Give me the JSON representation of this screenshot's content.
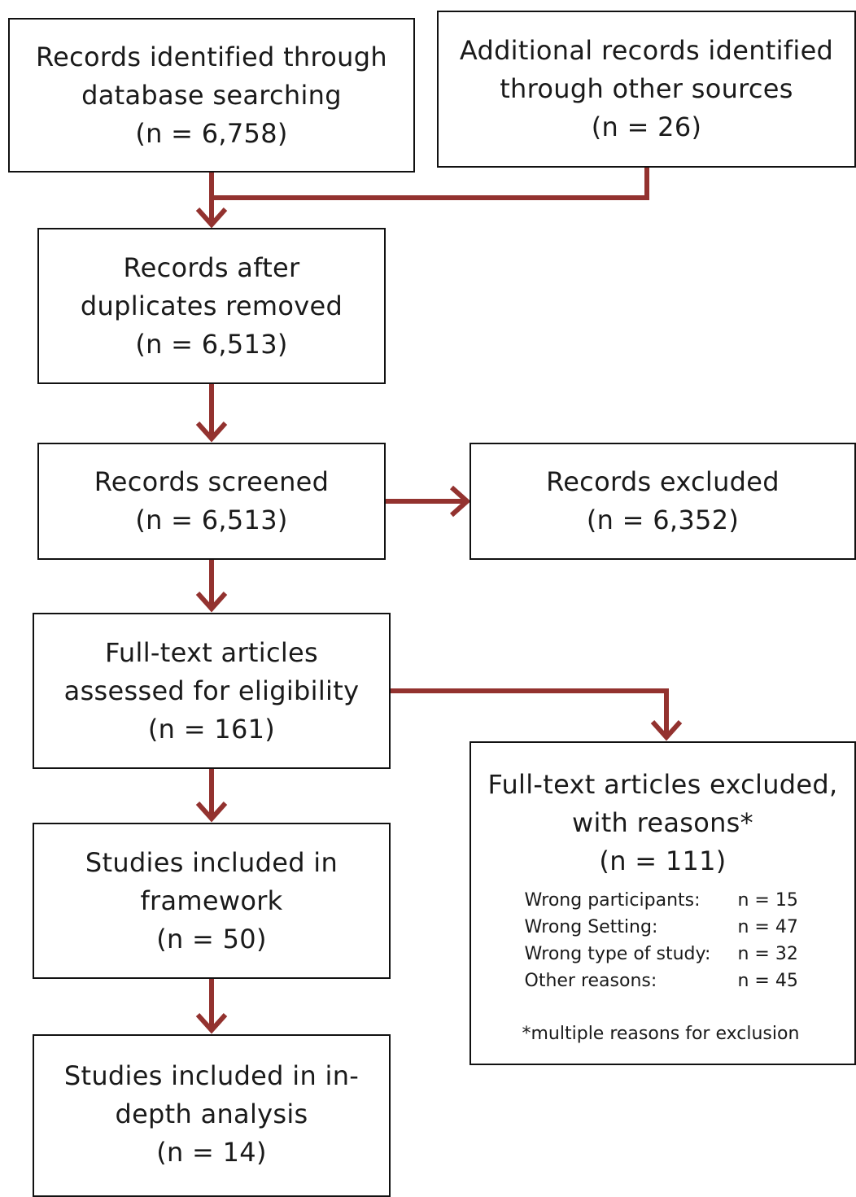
{
  "colors": {
    "arrow": "#93322f",
    "border": "#111111"
  },
  "boxes": {
    "database": "Records identified through\ndatabase searching\n(n = 6,758)",
    "other_sources": "Additional records identified\nthrough other sources\n(n = 26)",
    "after_duplicates": "Records after\nduplicates removed\n(n = 6,513)",
    "screened": "Records screened\n(n = 6,513)",
    "excluded": "Records excluded\n(n = 6,352)",
    "full_text": "Full-text articles\nassessed for eligibility\n(n = 161)",
    "full_text_excluded": "Full-text articles excluded,\nwith reasons*\n(n = 111)",
    "framework": "Studies included in\nframework\n(n = 50)",
    "in_depth": "Studies included in in-\ndepth analysis\n(n = 14)"
  },
  "reasons": [
    {
      "label": "Wrong participants:",
      "count": "n = 15"
    },
    {
      "label": "Wrong Setting:",
      "count": "n = 47"
    },
    {
      "label": "Wrong type of study:",
      "count": "n = 32"
    },
    {
      "label": "Other reasons:",
      "count": "n = 45"
    }
  ],
  "footnote": "*multiple reasons for exclusion"
}
